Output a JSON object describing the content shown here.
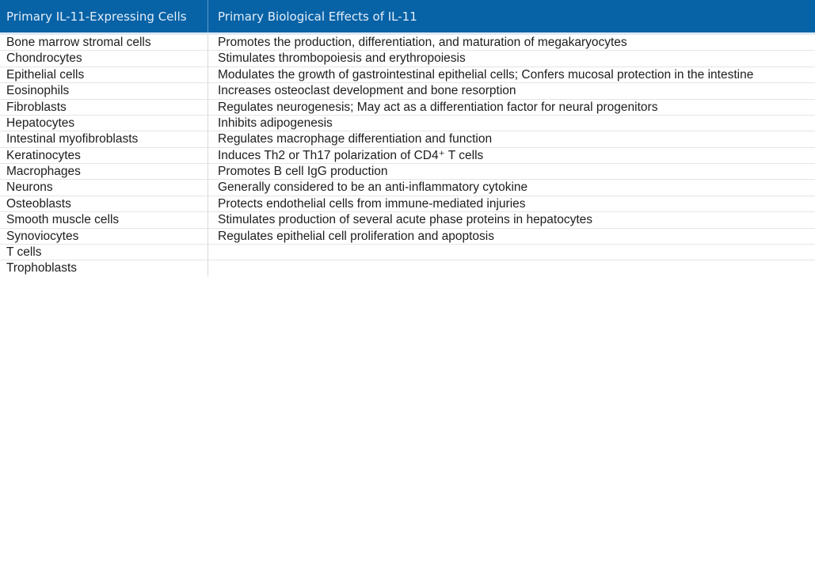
{
  "table": {
    "columns": [
      {
        "label": "Primary IL-11-Expressing Cells"
      },
      {
        "label": "Primary Biological Effects of IL-11"
      }
    ],
    "rows": [
      {
        "cell_type": "Bone marrow stromal cells",
        "effect": "Promotes the production, differentiation, and maturation of megakaryocytes"
      },
      {
        "cell_type": "Chondrocytes",
        "effect": "Stimulates thrombopoiesis and erythropoiesis"
      },
      {
        "cell_type": "Epithelial cells",
        "effect": "Modulates the growth of gastrointestinal epithelial cells; Confers mucosal protection in the intestine"
      },
      {
        "cell_type": "Eosinophils",
        "effect": "Increases osteoclast development and bone resorption"
      },
      {
        "cell_type": "Fibroblasts",
        "effect": "Regulates neurogenesis; May act as a differentiation factor for neural progenitors"
      },
      {
        "cell_type": "Hepatocytes",
        "effect": "Inhibits adipogenesis"
      },
      {
        "cell_type": "Intestinal myofibroblasts",
        "effect": "Regulates macrophage differentiation and function"
      },
      {
        "cell_type": "Keratinocytes",
        "effect": "Induces Th2 or Th17 polarization of CD4⁺ T cells"
      },
      {
        "cell_type": "Macrophages",
        "effect": "Promotes B cell IgG production"
      },
      {
        "cell_type": "Neurons",
        "effect": "Generally considered to be an anti-inflammatory cytokine"
      },
      {
        "cell_type": "Osteoblasts",
        "effect": "Protects endothelial cells from immune-mediated injuries"
      },
      {
        "cell_type": "Smooth muscle cells",
        "effect": "Stimulates production of several acute phase proteins in hepatocytes"
      },
      {
        "cell_type": "Synoviocytes",
        "effect": "Regulates epithelial cell proliferation and apoptosis"
      },
      {
        "cell_type": "T cells",
        "effect": ""
      },
      {
        "cell_type": "Trophoblasts",
        "effect": ""
      }
    ]
  },
  "colors": {
    "header_bg": "#0762a6",
    "header_text": "#e3eef8",
    "body_text": "#1d1d1d",
    "row_divider": "#e4e5e6",
    "column_divider": "#d9d9d9"
  }
}
